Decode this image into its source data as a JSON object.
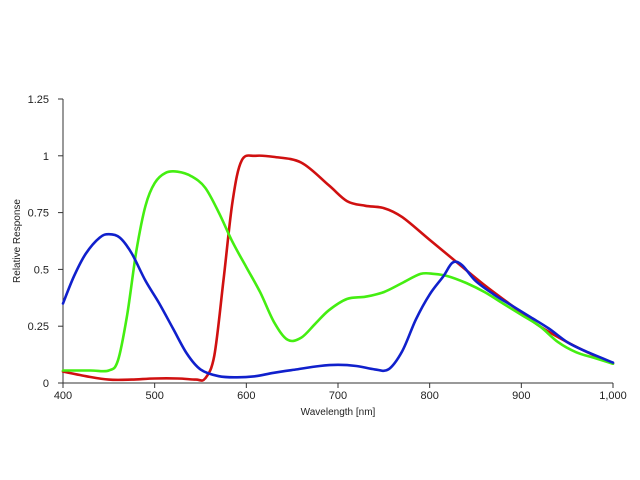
{
  "chart_data": {
    "type": "line",
    "title": "",
    "xlabel": "Wavelength [nm]",
    "ylabel": "Relative Response",
    "xlim": [
      400,
      1000
    ],
    "ylim": [
      0,
      1.25
    ],
    "grid": false,
    "legend": "none",
    "x_ticks": [
      400,
      500,
      600,
      700,
      800,
      900,
      1000
    ],
    "x_tick_labels": [
      "400",
      "500",
      "600",
      "700",
      "800",
      "900",
      "1,000"
    ],
    "y_ticks": [
      0,
      0.25,
      0.5,
      0.75,
      1,
      1.25
    ],
    "y_tick_labels": [
      "0",
      "0.25",
      "0.5",
      "0.75",
      "1",
      "1.25"
    ],
    "series": [
      {
        "color": "#d01010",
        "points": [
          [
            400,
            0.05
          ],
          [
            425,
            0.03
          ],
          [
            450,
            0.015
          ],
          [
            475,
            0.015
          ],
          [
            500,
            0.02
          ],
          [
            525,
            0.02
          ],
          [
            545,
            0.015
          ],
          [
            555,
            0.02
          ],
          [
            565,
            0.12
          ],
          [
            575,
            0.45
          ],
          [
            585,
            0.8
          ],
          [
            595,
            0.98
          ],
          [
            610,
            1.0
          ],
          [
            630,
            0.995
          ],
          [
            660,
            0.97
          ],
          [
            690,
            0.87
          ],
          [
            710,
            0.8
          ],
          [
            730,
            0.78
          ],
          [
            750,
            0.77
          ],
          [
            770,
            0.73
          ],
          [
            800,
            0.63
          ],
          [
            830,
            0.53
          ],
          [
            860,
            0.43
          ],
          [
            890,
            0.34
          ],
          [
            920,
            0.25
          ],
          [
            950,
            0.18
          ],
          [
            980,
            0.12
          ],
          [
            1000,
            0.085
          ]
        ]
      },
      {
        "color": "#44ee11",
        "points": [
          [
            400,
            0.055
          ],
          [
            430,
            0.055
          ],
          [
            450,
            0.055
          ],
          [
            460,
            0.1
          ],
          [
            470,
            0.3
          ],
          [
            480,
            0.58
          ],
          [
            490,
            0.78
          ],
          [
            500,
            0.88
          ],
          [
            512,
            0.925
          ],
          [
            525,
            0.93
          ],
          [
            540,
            0.91
          ],
          [
            555,
            0.86
          ],
          [
            570,
            0.75
          ],
          [
            585,
            0.62
          ],
          [
            600,
            0.51
          ],
          [
            615,
            0.4
          ],
          [
            630,
            0.27
          ],
          [
            645,
            0.19
          ],
          [
            660,
            0.2
          ],
          [
            675,
            0.26
          ],
          [
            690,
            0.32
          ],
          [
            710,
            0.37
          ],
          [
            730,
            0.38
          ],
          [
            750,
            0.4
          ],
          [
            770,
            0.44
          ],
          [
            790,
            0.48
          ],
          [
            805,
            0.48
          ],
          [
            820,
            0.47
          ],
          [
            840,
            0.44
          ],
          [
            860,
            0.4
          ],
          [
            880,
            0.35
          ],
          [
            900,
            0.3
          ],
          [
            920,
            0.25
          ],
          [
            940,
            0.18
          ],
          [
            960,
            0.135
          ],
          [
            980,
            0.11
          ],
          [
            1000,
            0.085
          ]
        ]
      },
      {
        "color": "#1020cc",
        "points": [
          [
            400,
            0.35
          ],
          [
            412,
            0.47
          ],
          [
            425,
            0.57
          ],
          [
            440,
            0.64
          ],
          [
            450,
            0.655
          ],
          [
            462,
            0.64
          ],
          [
            475,
            0.57
          ],
          [
            490,
            0.45
          ],
          [
            505,
            0.35
          ],
          [
            520,
            0.24
          ],
          [
            535,
            0.13
          ],
          [
            550,
            0.06
          ],
          [
            570,
            0.03
          ],
          [
            590,
            0.025
          ],
          [
            610,
            0.03
          ],
          [
            630,
            0.045
          ],
          [
            655,
            0.06
          ],
          [
            680,
            0.075
          ],
          [
            700,
            0.08
          ],
          [
            720,
            0.075
          ],
          [
            740,
            0.06
          ],
          [
            755,
            0.06
          ],
          [
            770,
            0.14
          ],
          [
            785,
            0.28
          ],
          [
            800,
            0.39
          ],
          [
            815,
            0.47
          ],
          [
            825,
            0.53
          ],
          [
            835,
            0.52
          ],
          [
            850,
            0.45
          ],
          [
            870,
            0.39
          ],
          [
            890,
            0.34
          ],
          [
            910,
            0.29
          ],
          [
            930,
            0.24
          ],
          [
            950,
            0.18
          ],
          [
            970,
            0.14
          ],
          [
            1000,
            0.09
          ]
        ]
      }
    ]
  }
}
